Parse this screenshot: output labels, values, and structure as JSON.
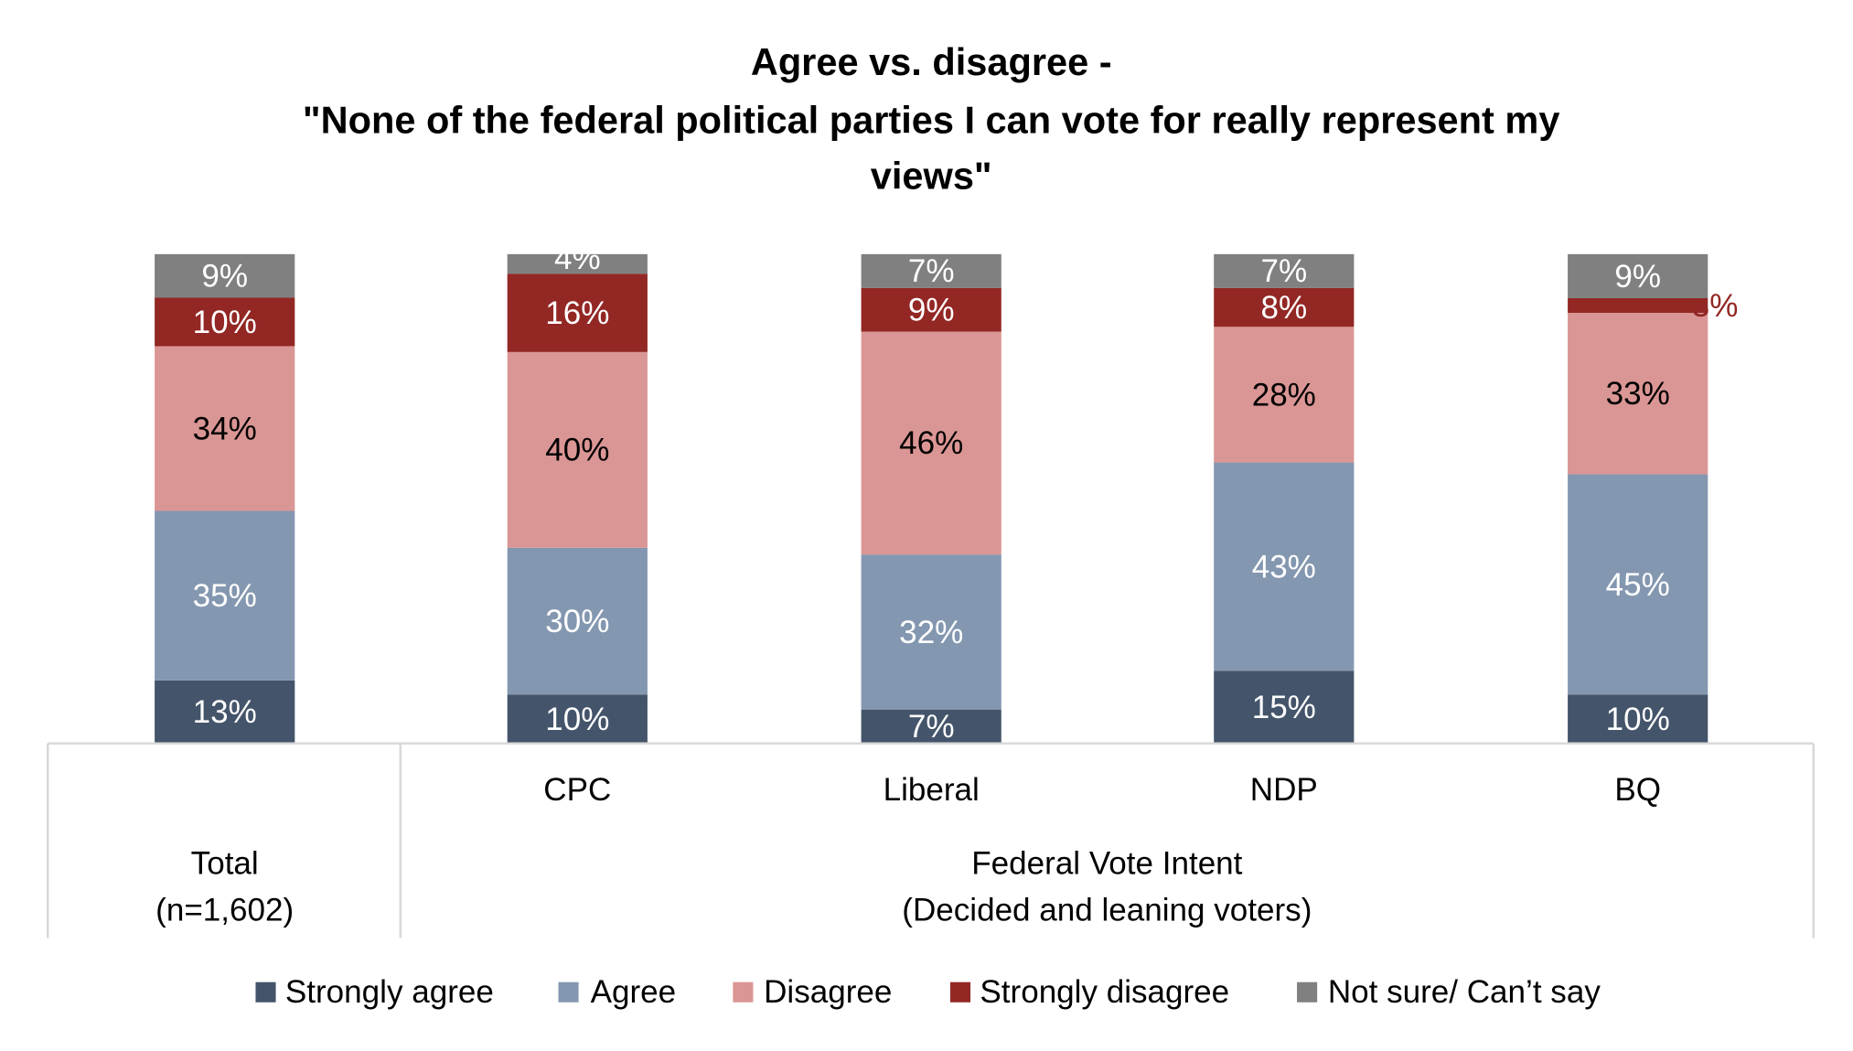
{
  "chart_data": {
    "type": "bar",
    "stacked": true,
    "title_lines": [
      "Agree vs. disagree -",
      "\"None of the federal political parties I can vote for really represent my",
      "views\""
    ],
    "categories": [
      "",
      "CPC",
      "Liberal",
      "NDP",
      "BQ"
    ],
    "groups": [
      {
        "label_lines": [
          "Total",
          "(n=1,602)"
        ]
      },
      {
        "label_lines": [
          "Federal Vote Intent",
          "(Decided and leaning voters)"
        ]
      }
    ],
    "unit": "%",
    "series": [
      {
        "name": "Strongly agree",
        "color": "#44546A",
        "label_color": "#FFFFFF",
        "values": [
          13,
          10,
          7,
          15,
          10
        ]
      },
      {
        "name": "Agree",
        "color": "#8497B0",
        "label_color": "#FFFFFF",
        "values": [
          35,
          30,
          32,
          43,
          45
        ]
      },
      {
        "name": "Disagree",
        "color": "#DA9694",
        "label_color": "#000000",
        "values": [
          34,
          40,
          46,
          28,
          33
        ]
      },
      {
        "name": "Strongly disagree",
        "color": "#922724",
        "label_color": "#FFFFFF",
        "values": [
          10,
          16,
          9,
          8,
          3
        ]
      },
      {
        "name": "Not sure/ Can’t say",
        "color": "#808080",
        "label_color": "#FFFFFF",
        "values": [
          9,
          4,
          7,
          7,
          9
        ]
      }
    ],
    "legend_position": "bottom",
    "grid": false
  }
}
